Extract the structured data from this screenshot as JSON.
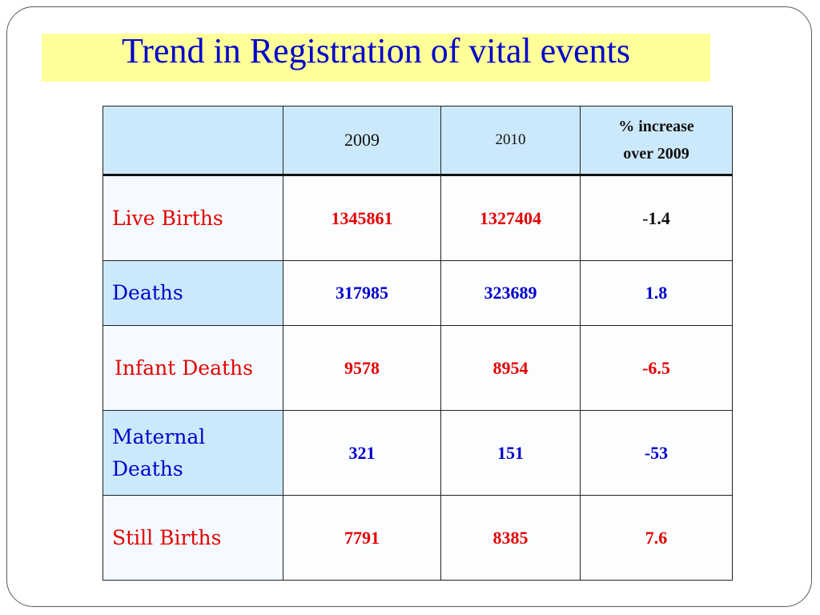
{
  "title": "Trend in Registration of vital events",
  "colors": {
    "title_text": "#0000cc",
    "title_band": "#ffff99",
    "header_bg": "#cce9fb",
    "red_text": "#e30000",
    "blue_text": "#0000cc"
  },
  "table": {
    "headers": {
      "corner": "",
      "year_2009": "2009",
      "year_2010": "2010",
      "pct_line1": "% increase",
      "pct_line2": "over 2009"
    },
    "rows": [
      {
        "label": "Live Births",
        "v2009": "1345861",
        "v2010": "1327404",
        "pct_sign": "-",
        "pct_value": "1.4"
      },
      {
        "label": "Deaths",
        "v2009": "317985",
        "v2010": "323689",
        "pct": "1.8"
      },
      {
        "label": "Infant Deaths",
        "v2009": "9578",
        "v2010": "8954",
        "pct": "-6.5"
      },
      {
        "label_line1": "Maternal",
        "label_line2": "Deaths",
        "v2009": "321",
        "v2010": "151",
        "pct": "-53"
      },
      {
        "label": "Still Births",
        "v2009": "7791",
        "v2010": "8385",
        "pct": "7.6"
      }
    ]
  }
}
